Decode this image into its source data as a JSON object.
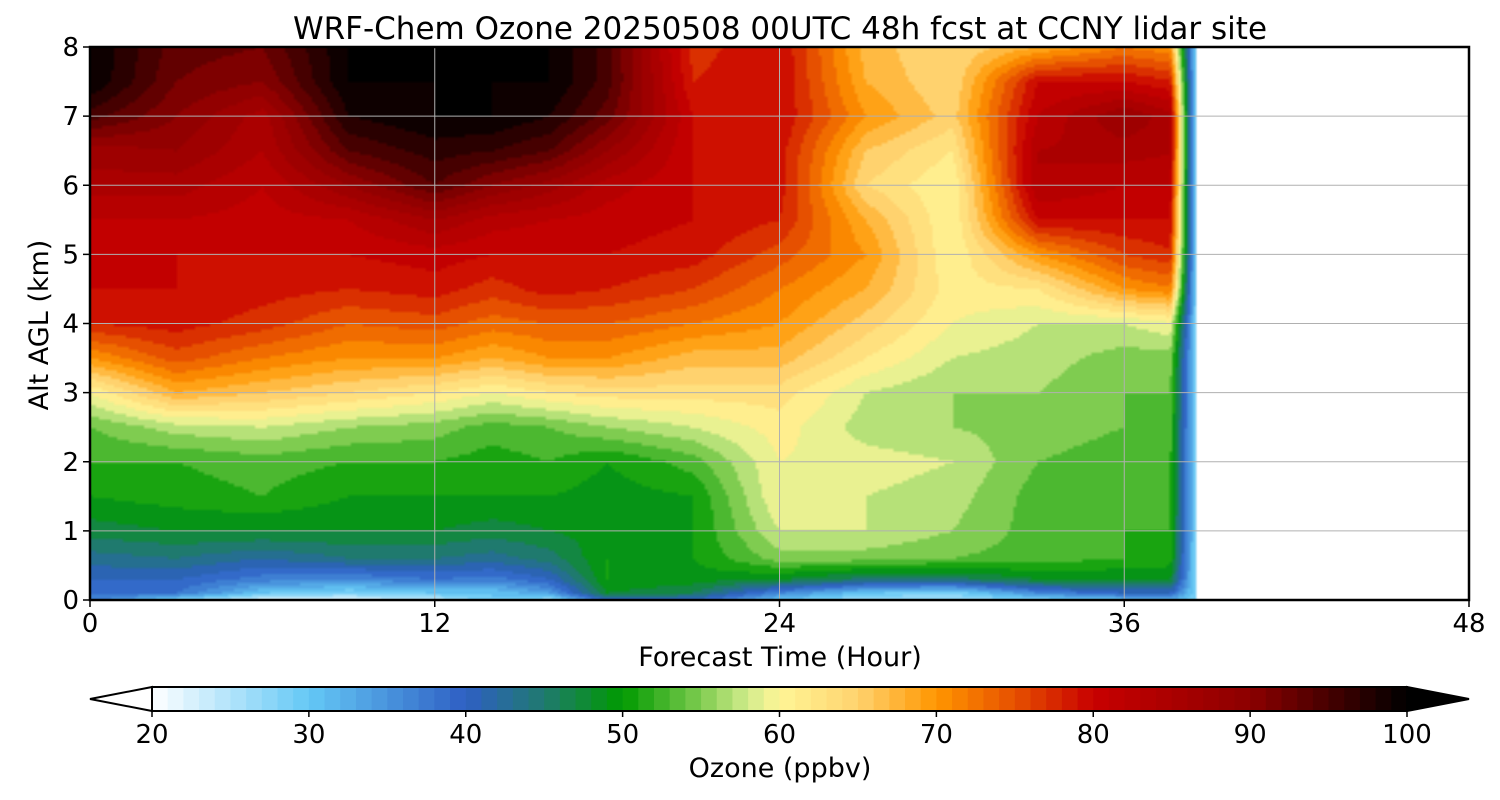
{
  "chart_data": {
    "type": "heatmap",
    "title": "WRF-Chem Ozone  20250508 00UTC 48h fcst at CCNY lidar site",
    "xlabel": "Forecast Time (Hour)",
    "ylabel": "Alt AGL (km)",
    "xlim": [
      0,
      48
    ],
    "ylim": [
      0,
      8
    ],
    "x_ticks": [
      "0",
      "12",
      "24",
      "36",
      "48"
    ],
    "y_ticks": [
      "0",
      "1",
      "2",
      "3",
      "4",
      "5",
      "6",
      "7",
      "8"
    ],
    "grid": true,
    "data_end_hour": 38.5,
    "colorbar": {
      "label": "Ozone  (ppbv)",
      "min": 20,
      "max": 100,
      "ticks": [
        "20",
        "30",
        "40",
        "50",
        "60",
        "70",
        "80",
        "90",
        "100"
      ],
      "extend": "both",
      "color_stops": [
        {
          "value": 20,
          "color": "#ffffff"
        },
        {
          "value": 30,
          "color": "#64c8f5"
        },
        {
          "value": 40,
          "color": "#2e5fc4"
        },
        {
          "value": 45,
          "color": "#1f7a6e"
        },
        {
          "value": 50,
          "color": "#009a00"
        },
        {
          "value": 55,
          "color": "#7fcc50"
        },
        {
          "value": 58,
          "color": "#d2ec8c"
        },
        {
          "value": 60,
          "color": "#fff596"
        },
        {
          "value": 65,
          "color": "#ffd26e"
        },
        {
          "value": 70,
          "color": "#ff9600"
        },
        {
          "value": 75,
          "color": "#e65000"
        },
        {
          "value": 80,
          "color": "#c80000"
        },
        {
          "value": 90,
          "color": "#8c0000"
        },
        {
          "value": 100,
          "color": "#000000"
        }
      ]
    },
    "profile_altitudes_km": [
      0,
      0.1,
      0.3,
      0.6,
      1.0,
      1.5,
      2.0,
      2.5,
      3.0,
      3.5,
      4.0,
      4.5,
      5.0,
      5.5,
      6.0,
      6.5,
      7.0,
      7.5,
      8.0
    ],
    "profiles": [
      {
        "hour": 0,
        "values": [
          38,
          38,
          40,
          43,
          47,
          50,
          52,
          54,
          60,
          70,
          78,
          80,
          80,
          82,
          85,
          87,
          95,
          100,
          100
        ]
      },
      {
        "hour": 3,
        "values": [
          28,
          38,
          40,
          44,
          48,
          51,
          52,
          57,
          68,
          75,
          79,
          80,
          80,
          82,
          85,
          88,
          90,
          92,
          93
        ]
      },
      {
        "hour": 6,
        "values": [
          22,
          30,
          37,
          42,
          48,
          52,
          53,
          58,
          66,
          72,
          77,
          79,
          80,
          81,
          82,
          84,
          85,
          90,
          92
        ]
      },
      {
        "hour": 9,
        "values": [
          22,
          28,
          36,
          44,
          48,
          50,
          52,
          56,
          64,
          70,
          74,
          78,
          80,
          82,
          88,
          94,
          98,
          100,
          100
        ]
      },
      {
        "hour": 12,
        "values": [
          24,
          30,
          38,
          44,
          48,
          50,
          52,
          55,
          62,
          70,
          75,
          79,
          81,
          86,
          94,
          97,
          100,
          100,
          100
        ]
      },
      {
        "hour": 14,
        "values": [
          30,
          30,
          37,
          43,
          47,
          50,
          51,
          53,
          60,
          68,
          73,
          77,
          80,
          83,
          90,
          96,
          100,
          100,
          100
        ]
      },
      {
        "hour": 16,
        "values": [
          26,
          34,
          40,
          45,
          48,
          50,
          52,
          54,
          62,
          70,
          74,
          79,
          80,
          82,
          87,
          94,
          98,
          100,
          100
        ]
      },
      {
        "hour": 18,
        "values": [
          40,
          48,
          50,
          50,
          49,
          49,
          50,
          56,
          63,
          70,
          74,
          78,
          80,
          81,
          83,
          88,
          93,
          95,
          95
        ]
      },
      {
        "hour": 21,
        "values": [
          40,
          46,
          49,
          50,
          50,
          50,
          53,
          58,
          63,
          67,
          72,
          76,
          79,
          80,
          80,
          80,
          80,
          78,
          77
        ]
      },
      {
        "hour": 24,
        "values": [
          30,
          36,
          48,
          55,
          58,
          60,
          60,
          61,
          63,
          67,
          70,
          72,
          75,
          78,
          79,
          79,
          80,
          80,
          80
        ]
      },
      {
        "hour": 27,
        "values": [
          26,
          30,
          45,
          55,
          58,
          58,
          59,
          57,
          58,
          62,
          65,
          68,
          70,
          68,
          64,
          66,
          70,
          68,
          67
        ]
      },
      {
        "hour": 30,
        "values": [
          26,
          28,
          45,
          54,
          56,
          57,
          58,
          56,
          56,
          58,
          60,
          61,
          60,
          60,
          60,
          62,
          65,
          64,
          64
        ]
      },
      {
        "hour": 33,
        "values": [
          28,
          36,
          48,
          53,
          53,
          53,
          54,
          55,
          56,
          57,
          58,
          62,
          70,
          80,
          84,
          84,
          82,
          80,
          68
        ]
      },
      {
        "hour": 36,
        "values": [
          30,
          40,
          48,
          52,
          52,
          53,
          53,
          54,
          54,
          55,
          58,
          70,
          76,
          80,
          82,
          85,
          88,
          80,
          72
        ]
      },
      {
        "hour": 38,
        "values": [
          32,
          40,
          48,
          51,
          52,
          52,
          52,
          53,
          54,
          55,
          60,
          72,
          78,
          80,
          82,
          84,
          84,
          78,
          70
        ]
      }
    ]
  }
}
